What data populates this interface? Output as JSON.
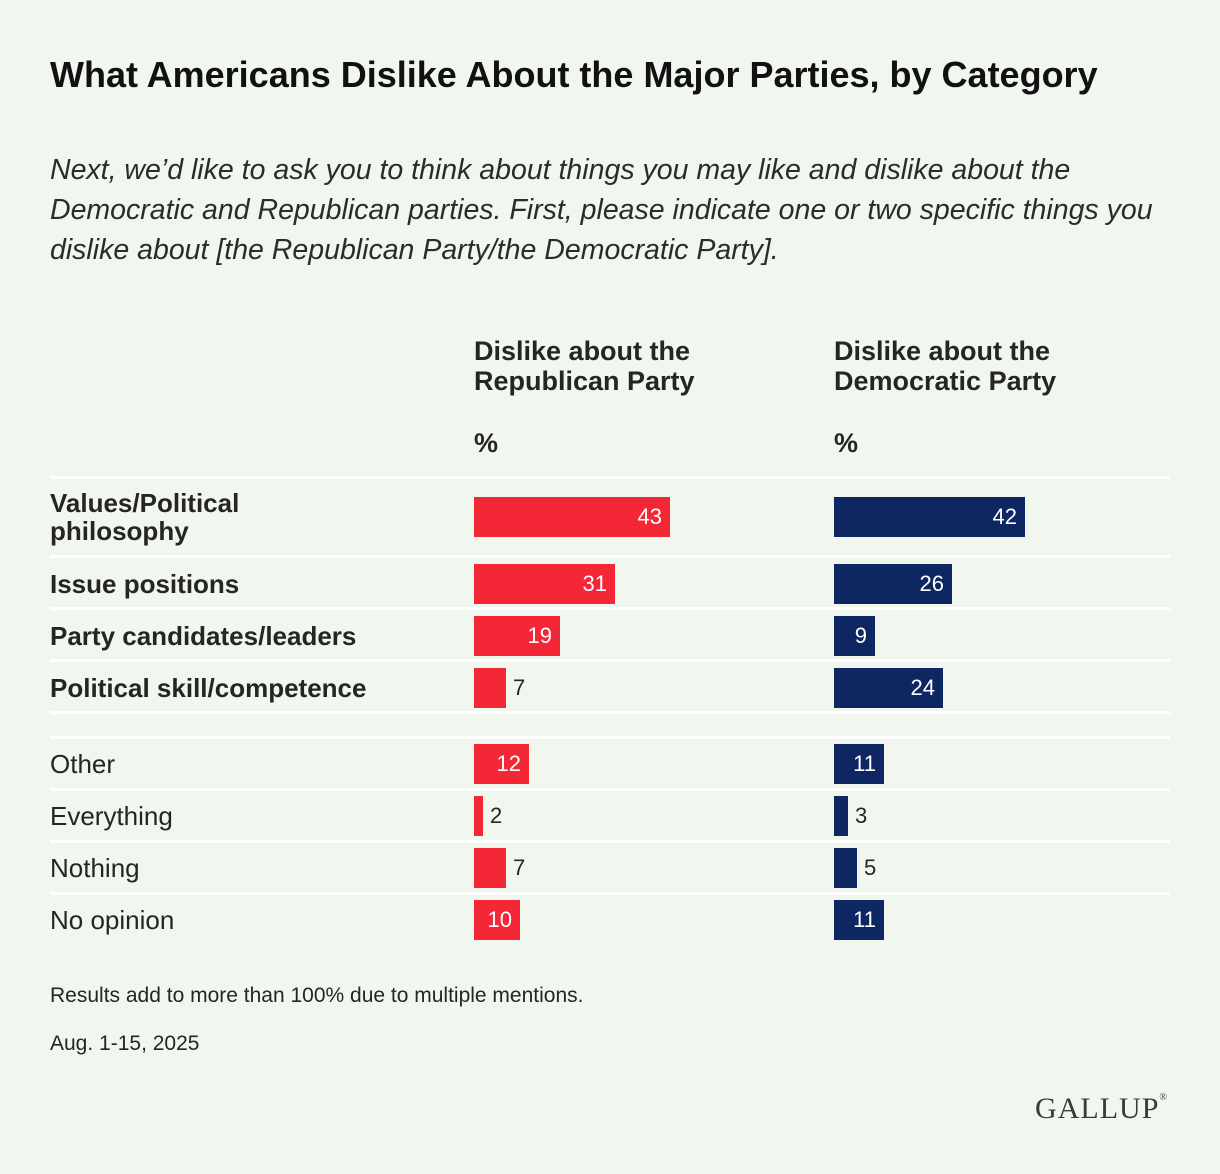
{
  "title": "What Americans Dislike About the Major Parties, by Category",
  "subtitle": "Next, we’d like to ask you to think about things you may like and dislike about the Democratic and Republican parties. First, please indicate one or two specific things you dislike about [the Republican Party/the Democratic Party].",
  "note": "Results add to more than 100% due to multiple mentions.",
  "date": "Aug. 1-15, 2025",
  "logo_text": "GALLUP",
  "colors": {
    "republican": "#f42737",
    "democratic": "#0e2763",
    "background": "#f1f6ef"
  },
  "chart_data": {
    "type": "bar",
    "orientation": "horizontal",
    "categories": [
      "Values/Political philosophy",
      "Issue positions",
      "Party candidates/leaders",
      "Political skill/competence",
      "Other",
      "Everything",
      "Nothing",
      "No opinion"
    ],
    "bold_categories": [
      true,
      true,
      true,
      true,
      false,
      false,
      false,
      false
    ],
    "unit_label": "%",
    "series": [
      {
        "name": "Dislike about the Republican Party",
        "values": [
          43,
          31,
          19,
          7,
          12,
          2,
          7,
          10
        ]
      },
      {
        "name": "Dislike about the Democratic Party",
        "values": [
          42,
          26,
          9,
          24,
          11,
          3,
          5,
          11
        ]
      }
    ]
  }
}
